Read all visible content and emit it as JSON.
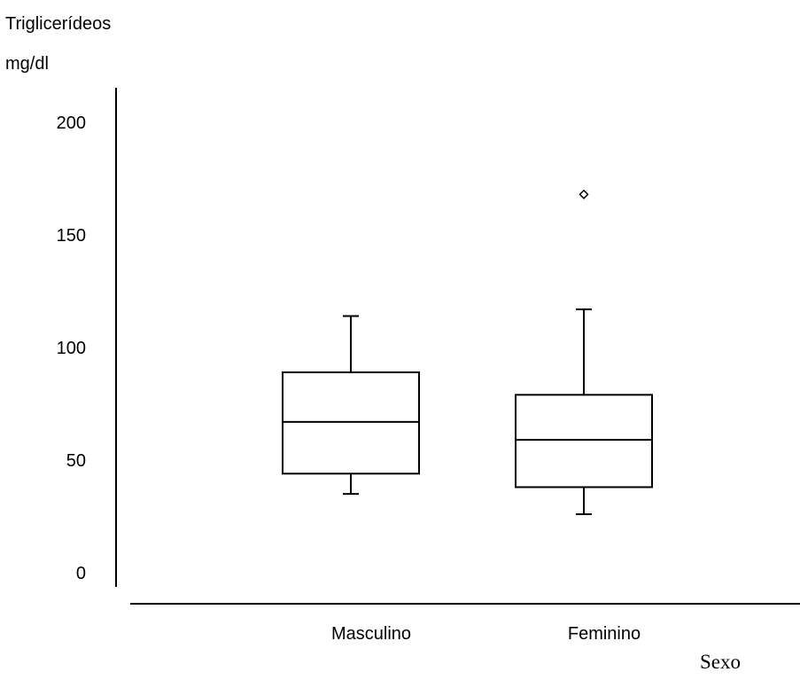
{
  "chart_data": {
    "type": "boxplot",
    "title": "",
    "ylabel_line1": "Triglicerídeos",
    "ylabel_line2": "mg/dl",
    "xlabel": "Sexo",
    "ylim": [
      0,
      200
    ],
    "yticks": [
      0,
      50,
      100,
      150,
      200
    ],
    "ytick_labels": [
      "0",
      "50",
      "100",
      "150",
      "200"
    ],
    "grid": false,
    "categories": [
      "Masculino",
      "Feminino"
    ],
    "boxes": [
      {
        "category": "Masculino",
        "whisker_low": 35,
        "q1": 44,
        "median": 67,
        "q3": 89,
        "whisker_high": 114,
        "outliers": []
      },
      {
        "category": "Feminino",
        "whisker_low": 26,
        "q1": 38,
        "median": 59,
        "q3": 79,
        "whisker_high": 117,
        "outliers": [
          168
        ]
      }
    ]
  }
}
